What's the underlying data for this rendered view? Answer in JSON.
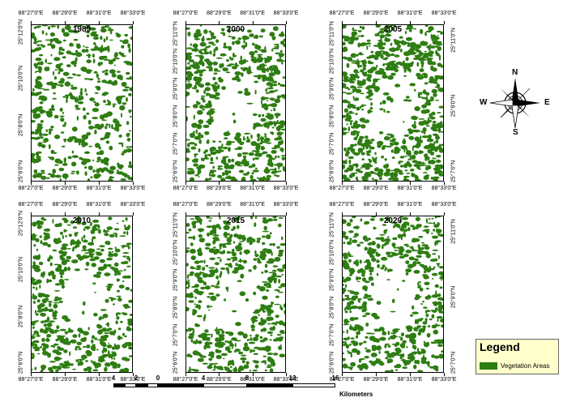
{
  "panels": [
    {
      "year": "1989",
      "density": 0.28,
      "pattern": "scattered"
    },
    {
      "year": "2000",
      "density": 0.55,
      "pattern": "river"
    },
    {
      "year": "2005",
      "density": 0.72,
      "pattern": "river"
    },
    {
      "year": "2010",
      "density": 0.48,
      "pattern": "river"
    },
    {
      "year": "2015",
      "density": 0.45,
      "pattern": "river"
    },
    {
      "year": "2020",
      "density": 0.5,
      "pattern": "river"
    }
  ],
  "longitude_labels": [
    "88°27'0\"E",
    "88°29'0\"E",
    "88°31'0\"E",
    "88°33'0\"E"
  ],
  "latitude_labels_left_a": [
    "25°12'0\"N",
    "25°10'0\"N",
    "25°8'0\"N",
    "25°6'0\"N"
  ],
  "latitude_labels_right_b": [
    "25°11'0\"N",
    "25°10'0\"N",
    "25°9'0\"N",
    "25°8'0\"N",
    "25°7'0\"N",
    "25°6'0\"N"
  ],
  "latitude_labels_right_c": [
    "25°11'0\"N",
    "25°9'0\"N",
    "25°7'0\"N"
  ],
  "legend": {
    "title": "Legend",
    "item": "Vegetation Areas",
    "color": "#2e7d12"
  },
  "scale": {
    "labels": [
      "4",
      "2",
      "0",
      "4",
      "8",
      "12",
      "16"
    ],
    "unit": "Kilometers"
  },
  "compass": {
    "n": "N",
    "s": "S",
    "e": "E",
    "w": "W"
  },
  "colors": {
    "vegetation": "#2e7d12",
    "background": "#ffffff"
  }
}
